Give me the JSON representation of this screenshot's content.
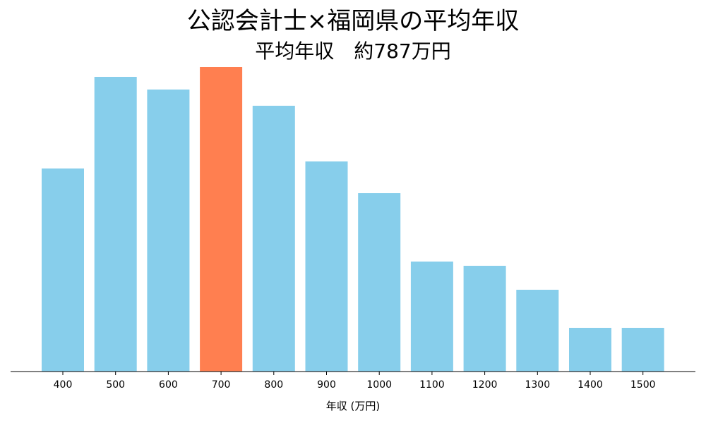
{
  "chart_data": {
    "type": "bar",
    "title": "公認会計士×福岡県の平均年収",
    "subtitle": "平均年収　約787万円",
    "xlabel": "年収 (万円)",
    "ylabel": "",
    "categories": [
      "400",
      "500",
      "600",
      "700",
      "800",
      "900",
      "1000",
      "1100",
      "1200",
      "1300",
      "1400",
      "1500"
    ],
    "values": [
      288,
      418,
      400,
      432,
      377,
      298,
      253,
      156,
      150,
      116,
      62,
      62
    ],
    "highlight_index": 3,
    "ylim": [
      0,
      432
    ],
    "grid": false,
    "y_axis_visible": false,
    "colors": {
      "bar": "#87ceeb",
      "highlight": "#ff7f50",
      "axis": "#000000"
    }
  }
}
